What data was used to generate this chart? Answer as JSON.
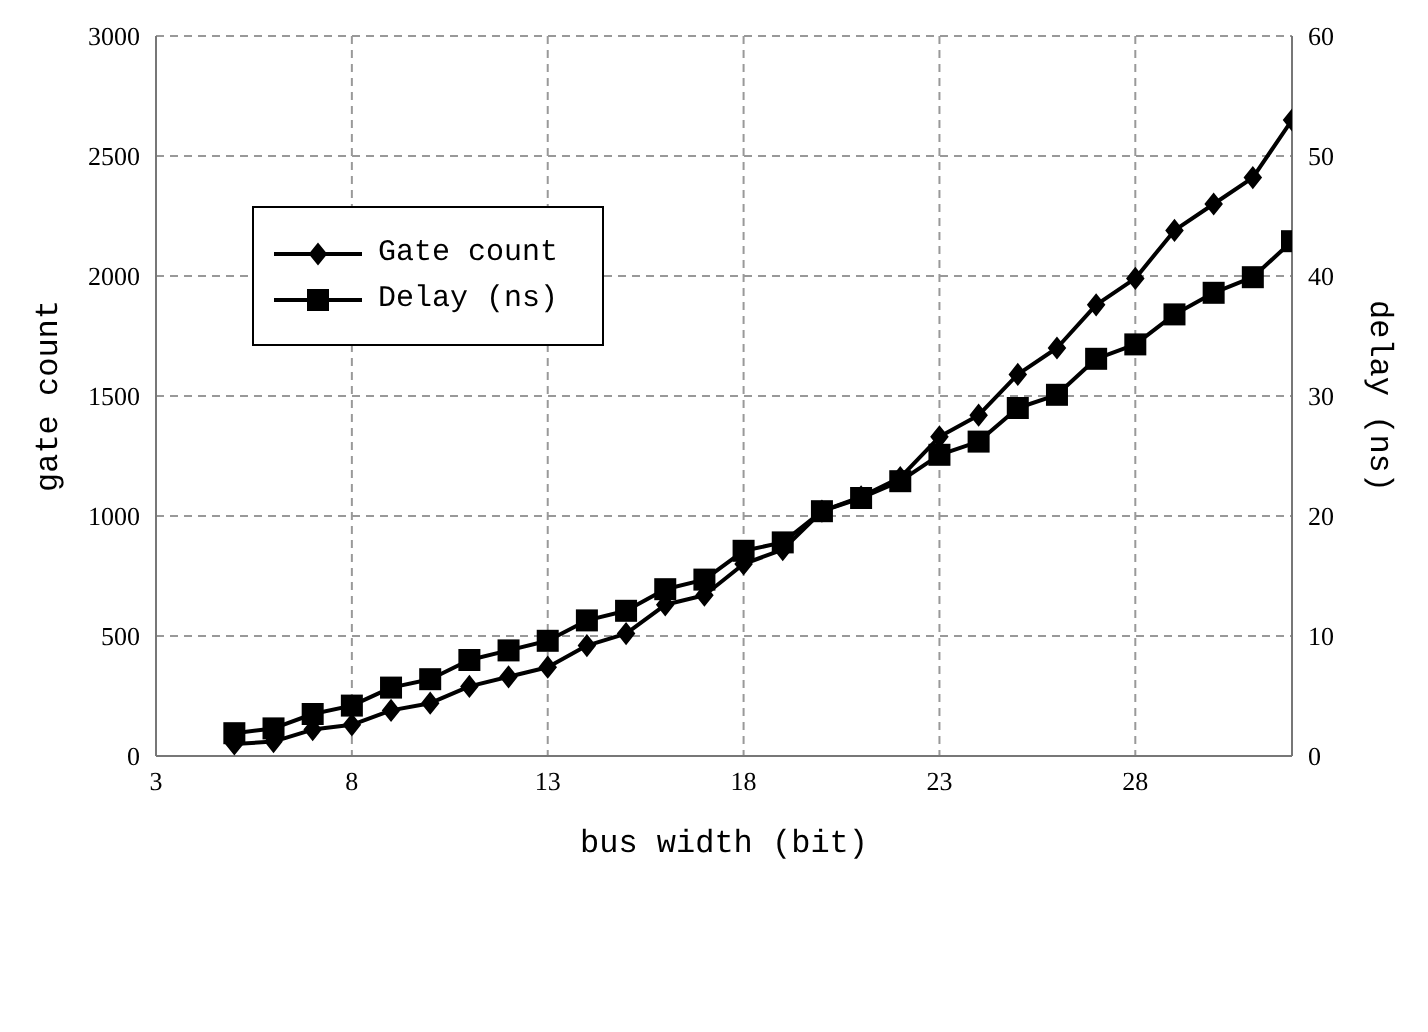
{
  "chart_data": {
    "type": "line",
    "xlabel": "bus width (bit)",
    "ylabel": "gate count",
    "y2label": "delay (ns)",
    "x": [
      5,
      6,
      7,
      8,
      9,
      10,
      11,
      12,
      13,
      14,
      15,
      16,
      17,
      18,
      19,
      20,
      21,
      22,
      23,
      24,
      25,
      26,
      27,
      28,
      29,
      30,
      31,
      32
    ],
    "series": [
      {
        "name": "Gate count",
        "color": "#000000",
        "marker": "diamond",
        "values": [
          50,
          60,
          110,
          130,
          190,
          220,
          290,
          330,
          370,
          460,
          510,
          630,
          670,
          800,
          860,
          1020,
          1080,
          1160,
          1330,
          1420,
          1590,
          1700,
          1880,
          1990,
          2190,
          2300,
          2410,
          2650
        ]
      },
      {
        "name": "Delay (ns)",
        "color": "#000000",
        "marker": "square",
        "axis": "y2",
        "values": [
          1.9,
          2.3,
          3.5,
          4.2,
          5.7,
          6.4,
          8.0,
          8.8,
          9.6,
          11.3,
          12.1,
          13.9,
          14.7,
          17.1,
          17.8,
          20.4,
          21.5,
          22.9,
          25.1,
          26.2,
          29.0,
          30.1,
          33.1,
          34.3,
          36.8,
          38.6,
          39.9,
          42.9
        ]
      }
    ],
    "xlim": [
      3,
      32
    ],
    "xticks": [
      3,
      8,
      13,
      18,
      23,
      28
    ],
    "ylim": [
      0,
      3000
    ],
    "yticks": [
      0,
      500,
      1000,
      1500,
      2000,
      2500,
      3000
    ],
    "y2lim": [
      0,
      60
    ],
    "y2ticks": [
      0,
      10,
      20,
      30,
      40,
      50,
      60
    ],
    "grid": true,
    "legend": "top left",
    "line_style": "solid"
  }
}
